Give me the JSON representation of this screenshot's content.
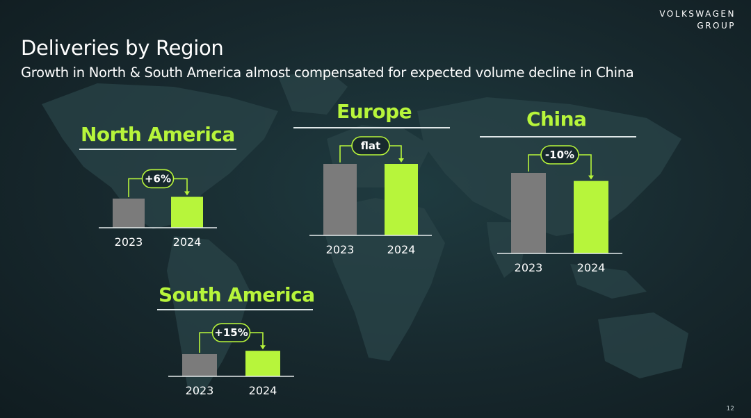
{
  "brand": {
    "line1": "VOLKSWAGEN",
    "line2": "GROUP"
  },
  "title": "Deliveries by Region",
  "subtitle": "Growth in North & South America almost compensated for expected volume decline in China",
  "page_number": "12",
  "colors": {
    "accent": "#b7f53b",
    "bar_2023": "#7b7b7b",
    "bar_2024": "#b7f53b",
    "background": "#17282d"
  },
  "chart_data": [
    {
      "type": "bar",
      "title": "North America",
      "categories": [
        "2023",
        "2024"
      ],
      "values": [
        100,
        106
      ],
      "change_label": "+6%",
      "ylim": [
        0,
        110
      ]
    },
    {
      "type": "bar",
      "title": "Europe",
      "categories": [
        "2023",
        "2024"
      ],
      "values": [
        100,
        100
      ],
      "change_label": "flat",
      "ylim": [
        0,
        110
      ]
    },
    {
      "type": "bar",
      "title": "China",
      "categories": [
        "2023",
        "2024"
      ],
      "values": [
        100,
        90
      ],
      "change_label": "-10%",
      "ylim": [
        0,
        110
      ]
    },
    {
      "type": "bar",
      "title": "South America",
      "categories": [
        "2023",
        "2024"
      ],
      "values": [
        100,
        115
      ],
      "change_label": "+15%",
      "ylim": [
        0,
        130
      ]
    }
  ]
}
